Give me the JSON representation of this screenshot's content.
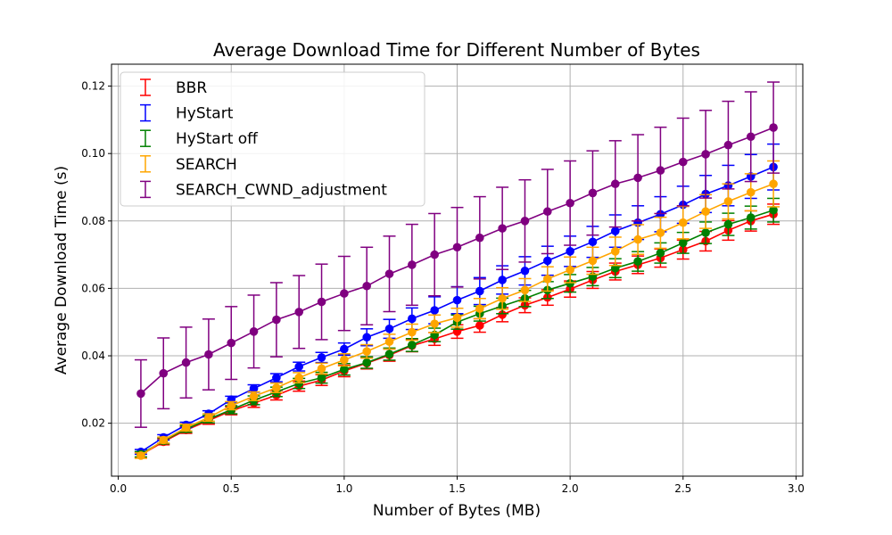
{
  "chart_data": {
    "type": "line",
    "title": "Average Download Time for Different Number of Bytes",
    "xlabel": "Number of Bytes (MB)",
    "ylabel": "Average Download Time (s)",
    "xlim": [
      -0.03,
      3.03
    ],
    "ylim": [
      0.0043,
      0.1265
    ],
    "xticks": [
      0.0,
      0.5,
      1.0,
      1.5,
      2.0,
      2.5,
      3.0
    ],
    "xtick_labels": [
      "0.0",
      "0.5",
      "1.0",
      "1.5",
      "2.0",
      "2.5",
      "3.0"
    ],
    "yticks": [
      0.02,
      0.04,
      0.06,
      0.08,
      0.1,
      0.12
    ],
    "ytick_labels": [
      "0.02",
      "0.04",
      "0.06",
      "0.08",
      "0.10",
      "0.12"
    ],
    "grid": true,
    "legend_position": "top-left",
    "x": [
      0.1,
      0.2,
      0.3,
      0.4,
      0.5,
      0.6,
      0.7,
      0.8,
      0.9,
      1.0,
      1.1,
      1.2,
      1.3,
      1.4,
      1.5,
      1.6,
      1.7,
      1.8,
      1.9,
      2.0,
      2.1,
      2.2,
      2.3,
      2.4,
      2.5,
      2.6,
      2.7,
      2.8,
      2.9
    ],
    "series": [
      {
        "name": "BBR",
        "color": "#ff0000",
        "values": [
          0.0106,
          0.0145,
          0.018,
          0.0208,
          0.0237,
          0.026,
          0.0283,
          0.031,
          0.0328,
          0.0355,
          0.0378,
          0.0402,
          0.043,
          0.045,
          0.0472,
          0.049,
          0.0522,
          0.055,
          0.0573,
          0.0598,
          0.0625,
          0.065,
          0.067,
          0.069,
          0.0715,
          0.074,
          0.0772,
          0.08,
          0.082
        ],
        "errors": [
          0.0008,
          0.0009,
          0.001,
          0.0011,
          0.0012,
          0.0013,
          0.0014,
          0.0015,
          0.0016,
          0.0017,
          0.0017,
          0.0018,
          0.0018,
          0.0019,
          0.002,
          0.002,
          0.0021,
          0.0022,
          0.0023,
          0.0024,
          0.0025,
          0.0025,
          0.0026,
          0.0027,
          0.0028,
          0.0029,
          0.0029,
          0.003,
          0.003
        ]
      },
      {
        "name": "HyStart",
        "color": "#0000ff",
        "values": [
          0.0115,
          0.0158,
          0.0195,
          0.0228,
          0.027,
          0.0303,
          0.0335,
          0.0368,
          0.0395,
          0.042,
          0.0455,
          0.048,
          0.051,
          0.0535,
          0.0565,
          0.0592,
          0.0625,
          0.0652,
          0.0682,
          0.071,
          0.0738,
          0.077,
          0.0795,
          0.082,
          0.0848,
          0.088,
          0.0905,
          0.0932,
          0.096
        ],
        "errors": [
          0.0007,
          0.0008,
          0.0008,
          0.0009,
          0.001,
          0.0011,
          0.0012,
          0.0013,
          0.0015,
          0.0018,
          0.0025,
          0.0028,
          0.0032,
          0.004,
          0.004,
          0.004,
          0.0042,
          0.0042,
          0.0043,
          0.0045,
          0.0046,
          0.0048,
          0.005,
          0.0052,
          0.0055,
          0.0055,
          0.006,
          0.0065,
          0.0068
        ]
      },
      {
        "name": "HyStart off",
        "color": "#008000",
        "values": [
          0.0108,
          0.0148,
          0.0183,
          0.0212,
          0.024,
          0.0268,
          0.0293,
          0.0318,
          0.0335,
          0.036,
          0.038,
          0.0405,
          0.0432,
          0.0462,
          0.05,
          0.0525,
          0.0548,
          0.057,
          0.0595,
          0.0615,
          0.0635,
          0.066,
          0.068,
          0.0705,
          0.0735,
          0.0765,
          0.079,
          0.081,
          0.0832
        ],
        "errors": [
          0.0008,
          0.0009,
          0.001,
          0.0011,
          0.0012,
          0.0013,
          0.0014,
          0.0015,
          0.0016,
          0.0017,
          0.0017,
          0.0018,
          0.0019,
          0.002,
          0.0021,
          0.0022,
          0.0023,
          0.0024,
          0.0025,
          0.0026,
          0.0027,
          0.0028,
          0.0029,
          0.003,
          0.0031,
          0.0032,
          0.0033,
          0.0034,
          0.0035
        ]
      },
      {
        "name": "SEARCH",
        "color": "#ffa500",
        "values": [
          0.0104,
          0.015,
          0.0187,
          0.0217,
          0.0252,
          0.028,
          0.0305,
          0.0335,
          0.0362,
          0.0388,
          0.0413,
          0.0442,
          0.047,
          0.0495,
          0.0513,
          0.054,
          0.057,
          0.0595,
          0.0628,
          0.0655,
          0.0682,
          0.071,
          0.0745,
          0.0765,
          0.0795,
          0.0828,
          0.0858,
          0.0885,
          0.091
        ],
        "errors": [
          0.0008,
          0.0009,
          0.001,
          0.0011,
          0.0012,
          0.0013,
          0.0014,
          0.0015,
          0.0016,
          0.0018,
          0.002,
          0.0022,
          0.0024,
          0.0026,
          0.0028,
          0.003,
          0.0032,
          0.0034,
          0.0036,
          0.0038,
          0.004,
          0.0042,
          0.0044,
          0.0046,
          0.0048,
          0.005,
          0.0052,
          0.0055,
          0.0068
        ]
      },
      {
        "name": "SEARCH_CWND_adjustment",
        "color": "#800080",
        "values": [
          0.0288,
          0.0348,
          0.038,
          0.0404,
          0.0438,
          0.0472,
          0.0507,
          0.053,
          0.056,
          0.0585,
          0.0607,
          0.0643,
          0.067,
          0.07,
          0.0722,
          0.075,
          0.0778,
          0.08,
          0.0828,
          0.0853,
          0.0883,
          0.091,
          0.0928,
          0.095,
          0.0975,
          0.0998,
          0.1025,
          0.105,
          0.1077
        ],
        "errors": [
          0.01,
          0.0105,
          0.0105,
          0.0105,
          0.0108,
          0.0108,
          0.011,
          0.0108,
          0.0112,
          0.011,
          0.0115,
          0.0112,
          0.012,
          0.0122,
          0.0118,
          0.0122,
          0.0122,
          0.0122,
          0.0125,
          0.0125,
          0.0125,
          0.0128,
          0.0128,
          0.0128,
          0.013,
          0.013,
          0.013,
          0.0133,
          0.0135
        ]
      }
    ]
  }
}
